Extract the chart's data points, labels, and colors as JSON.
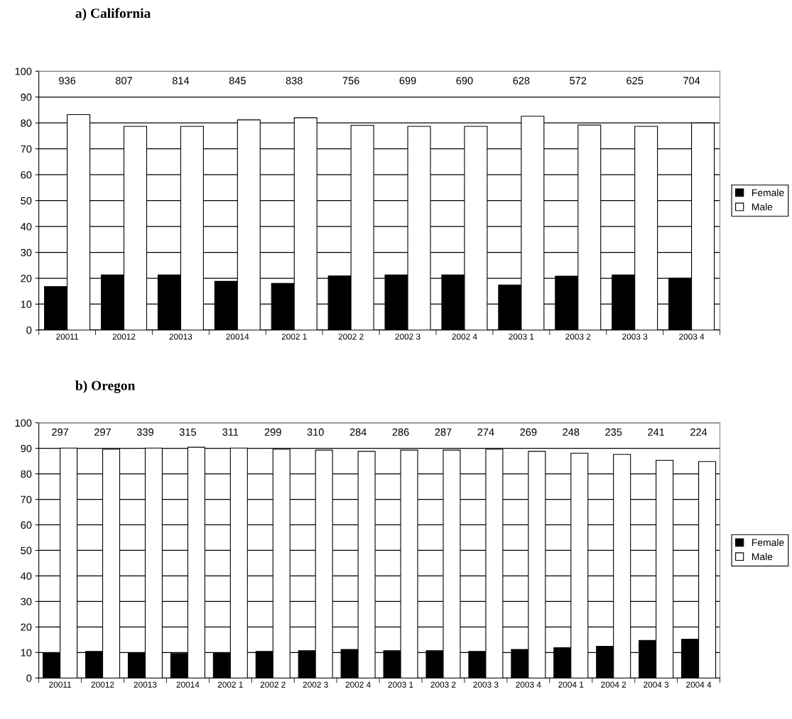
{
  "chart_data": [
    {
      "type": "bar",
      "title": "a) California",
      "categories": [
        "20011",
        "20012",
        "20013",
        "20014",
        "2002 1",
        "2002 2",
        "2002 3",
        "2002 4",
        "2003 1",
        "2003 2",
        "2003 3",
        "2003 4"
      ],
      "series": [
        {
          "name": "Female",
          "color": "#000000",
          "values": [
            16.8,
            21.3,
            21.3,
            18.8,
            18.0,
            20.9,
            21.3,
            21.3,
            17.4,
            20.8,
            21.3,
            20.0
          ]
        },
        {
          "name": "Male",
          "color": "#ffffff",
          "values": [
            83.2,
            78.7,
            78.7,
            81.2,
            82.0,
            79.1,
            78.7,
            78.7,
            82.6,
            79.2,
            78.7,
            80.0
          ]
        }
      ],
      "annotations": [
        "936",
        "807",
        "814",
        "845",
        "838",
        "756",
        "699",
        "690",
        "628",
        "572",
        "625",
        "704"
      ],
      "ylim": [
        0,
        100
      ],
      "yticks": [
        0,
        10,
        20,
        30,
        40,
        50,
        60,
        70,
        80,
        90,
        100
      ],
      "grid": "y",
      "legend": "right"
    },
    {
      "type": "bar",
      "title": "b) Oregon",
      "categories": [
        "20011",
        "20012",
        "20013",
        "20014",
        "2002 1",
        "2002 2",
        "2002 3",
        "2002 4",
        "2003 1",
        "2003 2",
        "2003 3",
        "2003 4",
        "2004 1",
        "2004 2",
        "2004 3",
        "2004 4"
      ],
      "series": [
        {
          "name": "Female",
          "color": "#000000",
          "values": [
            9.9,
            10.4,
            9.9,
            9.6,
            9.9,
            10.4,
            10.7,
            11.2,
            10.7,
            10.7,
            10.4,
            11.2,
            11.9,
            12.4,
            14.7,
            15.2
          ]
        },
        {
          "name": "Male",
          "color": "#ffffff",
          "values": [
            90.1,
            89.6,
            90.1,
            90.4,
            90.1,
            89.6,
            89.3,
            88.8,
            89.3,
            89.3,
            89.6,
            88.8,
            88.1,
            87.6,
            85.3,
            84.8
          ]
        }
      ],
      "annotations": [
        "297",
        "297",
        "339",
        "315",
        "311",
        "299",
        "310",
        "284",
        "286",
        "287",
        "274",
        "269",
        "248",
        "235",
        "241",
        "224"
      ],
      "ylim": [
        0,
        100
      ],
      "yticks": [
        0,
        10,
        20,
        30,
        40,
        50,
        60,
        70,
        80,
        90,
        100
      ],
      "grid": "y",
      "legend": "right"
    }
  ]
}
